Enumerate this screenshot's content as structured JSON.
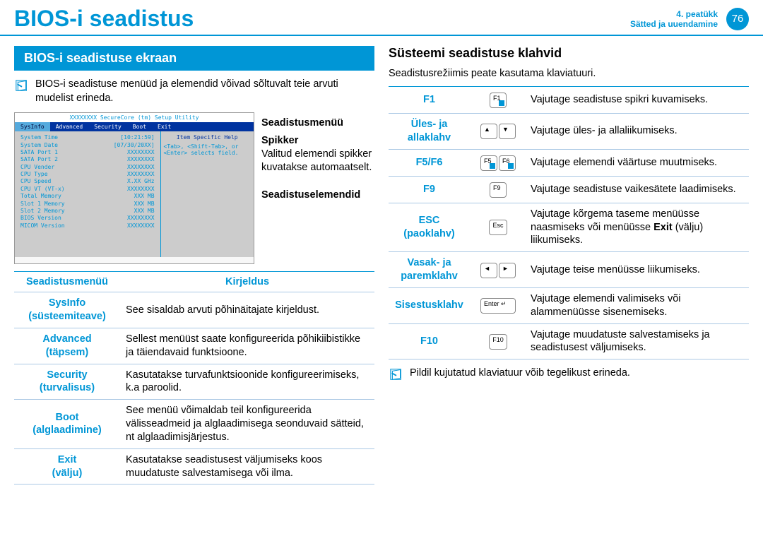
{
  "header": {
    "title": "BIOS-i seadistus",
    "chapter_top": "4. peatükk",
    "chapter_bottom": "Sätted ja uuendamine",
    "page": "76"
  },
  "left": {
    "section_title": "BIOS-i seadistuse ekraan",
    "note": "BIOS-i seadistuse menüüd ja elemendid võivad sõltuvalt teie arvuti mudelist erineda.",
    "bios_window": {
      "top": "XXXXXXXX SecureCore (tm) Setup Utility",
      "menu": [
        "SysInfo",
        "Advanced",
        "Security",
        "Boot",
        "Exit"
      ],
      "help_header": "Item Specific Help",
      "help_body": "<Tab>, <Shift-Tab>, or <Enter> selects field.",
      "rows": [
        [
          "System Time",
          "[10:21:59]"
        ],
        [
          "System Date",
          "[07/30/20XX]"
        ],
        [
          "SATA Port 1",
          "XXXXXXXX"
        ],
        [
          "SATA Port 2",
          "XXXXXXXX"
        ],
        [
          "",
          ""
        ],
        [
          "CPU Vender",
          "XXXXXXXX"
        ],
        [
          "CPU Type",
          "XXXXXXXX"
        ],
        [
          "CPU Speed",
          "X.XX GHz"
        ],
        [
          "CPU VT (VT-x)",
          "XXXXXXXX"
        ],
        [
          "",
          ""
        ],
        [
          "Total Memory",
          "XXX MB"
        ],
        [
          "Slot 1 Memory",
          "XXX MB"
        ],
        [
          "Slot 2 Memory",
          "XXX MB"
        ],
        [
          "",
          ""
        ],
        [
          "BIOS Version",
          "XXXXXXXX"
        ],
        [
          "MICOM Version",
          "XXXXXXXX"
        ]
      ]
    },
    "callouts": {
      "c1": "Seadistusmenüü",
      "c2": "Spikker",
      "c2_body": "Valitud elemendi spikker kuvatakse automaatselt.",
      "c3": "Seadistuselemendid"
    },
    "menu_table": {
      "headers": [
        "Seadistusmenüü",
        "Kirjeldus"
      ],
      "rows": [
        {
          "name": "SysInfo (süsteemiteave)",
          "desc": "See sisaldab arvuti põhinäitajate kirjeldust."
        },
        {
          "name": "Advanced (täpsem)",
          "desc": "Sellest menüüst saate konfigureerida põhikiibistikke ja täiendavaid funktsioone."
        },
        {
          "name": "Security (turvalisus)",
          "desc": "Kasutatakse turvafunktsioonide konfigureerimiseks, k.a paroolid."
        },
        {
          "name": "Boot (alglaadimine)",
          "desc": "See menüü võimaldab teil konfigureerida välisseadmeid ja alglaadimisega seonduvaid sätteid, nt alglaadimisjärjestus."
        },
        {
          "name": "Exit (välju)",
          "desc": "Kasutatakse seadistusest väljumiseks koos muudatuste salvestamisega või ilma."
        }
      ]
    }
  },
  "right": {
    "title": "Süsteemi seadistuse klahvid",
    "intro": "Seadistusrežiimis peate kasutama klaviatuuri.",
    "keys": [
      {
        "name": "F1",
        "icons": [
          "F1"
        ],
        "iconClass": "blue",
        "desc": "Vajutage seadistuse spikri kuvamiseks."
      },
      {
        "name": "Üles- ja allaklahv",
        "icons": [
          "▲",
          "▼"
        ],
        "desc": "Vajutage üles- ja allaliikumiseks."
      },
      {
        "name": "F5/F6",
        "icons": [
          "F5",
          "F6"
        ],
        "iconClass": "blue",
        "desc": "Vajutage elemendi väärtuse muutmiseks."
      },
      {
        "name": "F9",
        "icons": [
          "F9"
        ],
        "desc": "Vajutage seadistuse vaikesätete laadimiseks."
      },
      {
        "name": "ESC (paoklahv)",
        "icons": [
          "Esc"
        ],
        "desc_html": "Vajutage kõrgema taseme menüüsse naasmiseks või menüüsse <b>Exit</b> (välju) liikumiseks."
      },
      {
        "name": "Vasak- ja paremklahv",
        "icons": [
          "◄",
          "►"
        ],
        "desc": "Vajutage teise menüüsse liikumiseks."
      },
      {
        "name": "Sisestusklahv",
        "icons": [
          "Enter ↵"
        ],
        "iconWide": true,
        "desc": "Vajutage elemendi valimiseks või alammenüüsse sisenemiseks."
      },
      {
        "name": "F10",
        "icons": [
          "F10"
        ],
        "desc": "Vajutage muudatuste salvestamiseks ja seadistusest väljumiseks."
      }
    ],
    "footer_note": "Pildil kujutatud klaviatuur võib tegelikust erineda."
  }
}
